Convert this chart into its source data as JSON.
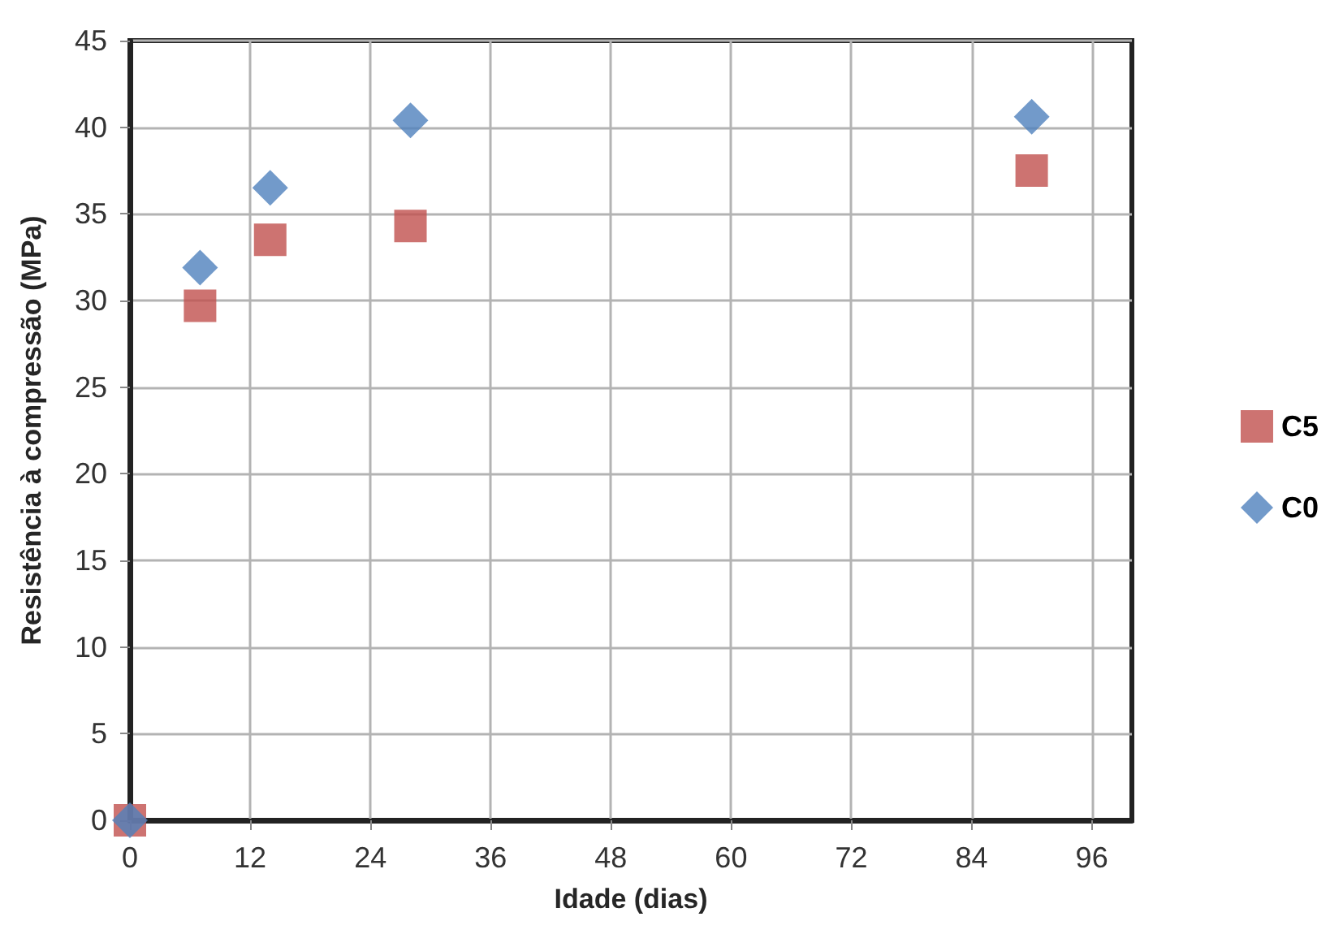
{
  "chart_data": {
    "type": "scatter",
    "xlabel": "Idade (dias)",
    "ylabel": "Resistência à compressão (MPa)",
    "xlim": [
      0,
      100
    ],
    "xticks": [
      0,
      12,
      24,
      36,
      48,
      60,
      72,
      84,
      96
    ],
    "ylim": [
      0,
      45
    ],
    "yticks": [
      0,
      5,
      10,
      15,
      20,
      25,
      30,
      35,
      40,
      45
    ],
    "grid": true,
    "legend": "right",
    "series": [
      {
        "name": "C5",
        "color": "#c0504d",
        "marker": "square",
        "x": [
          0,
          7,
          14,
          28,
          90
        ],
        "values": [
          0,
          29.7,
          33.5,
          34.3,
          37.5
        ]
      },
      {
        "name": "C0",
        "color": "#4f81bd",
        "marker": "diamond",
        "x": [
          0,
          7,
          14,
          28,
          90
        ],
        "values": [
          0,
          31.9,
          36.5,
          40.4,
          40.6
        ]
      }
    ]
  }
}
